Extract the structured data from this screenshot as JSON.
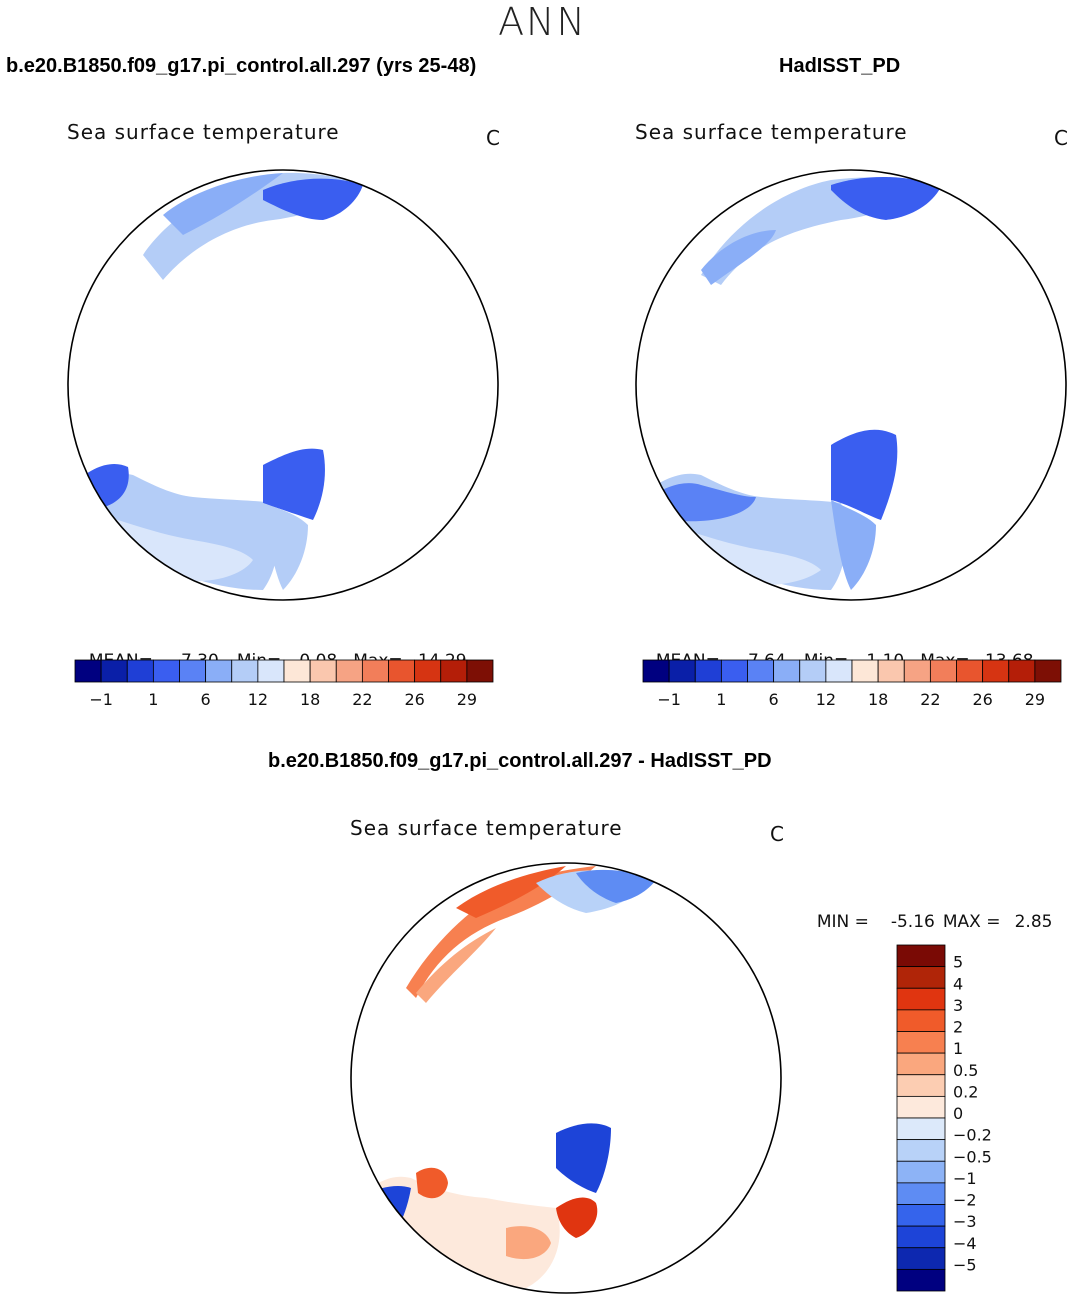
{
  "season": "ANN",
  "panels": [
    {
      "case_title": "b.e20.B1850.f09_g17.pi_control.all.297 (yrs 25-48)",
      "var_title": "Sea surface temperature",
      "units": "C",
      "stats": {
        "mean_label": "MEAN=",
        "mean": "7.30",
        "min_label": "Min=",
        "min": "0.08",
        "max_label": "Max=",
        "max": "14.29"
      }
    },
    {
      "case_title": "HadISST_PD",
      "var_title": "Sea surface temperature",
      "units": "C",
      "stats": {
        "mean_label": "MEAN=",
        "mean": "7.64",
        "min_label": "Min=",
        "min": "1.10",
        "max_label": "Max=",
        "max": "13.68"
      }
    }
  ],
  "colorbar": {
    "colors": [
      "#000080",
      "#0a1fa8",
      "#1f3fd6",
      "#3a5ef0",
      "#5a82f5",
      "#8aaef7",
      "#b4cdf7",
      "#d9e6fb",
      "#fde7d7",
      "#fac7ae",
      "#f6a384",
      "#f27e5a",
      "#e8552e",
      "#d63412",
      "#b41e08",
      "#7d0f05"
    ],
    "labels": [
      "-1",
      "1",
      "6",
      "12",
      "18",
      "22",
      "26",
      "29"
    ]
  },
  "diff": {
    "title": "b.e20.B1850.f09_g17.pi_control.all.297 - HadISST_PD",
    "var_title": "Sea surface temperature",
    "units": "C",
    "min_label": "MIN =",
    "min": "-5.16",
    "max_label": "MAX =",
    "max": "2.85",
    "colorbar_colors": [
      "#7a0a05",
      "#b02508",
      "#e03510",
      "#f05b2a",
      "#f78050",
      "#faa77e",
      "#fccdb2",
      "#fde9dc",
      "#dce9fa",
      "#b8d2f8",
      "#8db3f6",
      "#5e8cf3",
      "#3564ec",
      "#1d44d8",
      "#0d28b0",
      "#000080"
    ],
    "colorbar_labels": [
      "5",
      "4",
      "3",
      "2",
      "1",
      "0.5",
      "0.2",
      "0",
      "−0.2",
      "−0.5",
      "−1",
      "−2",
      "−3",
      "−4",
      "−5"
    ]
  }
}
